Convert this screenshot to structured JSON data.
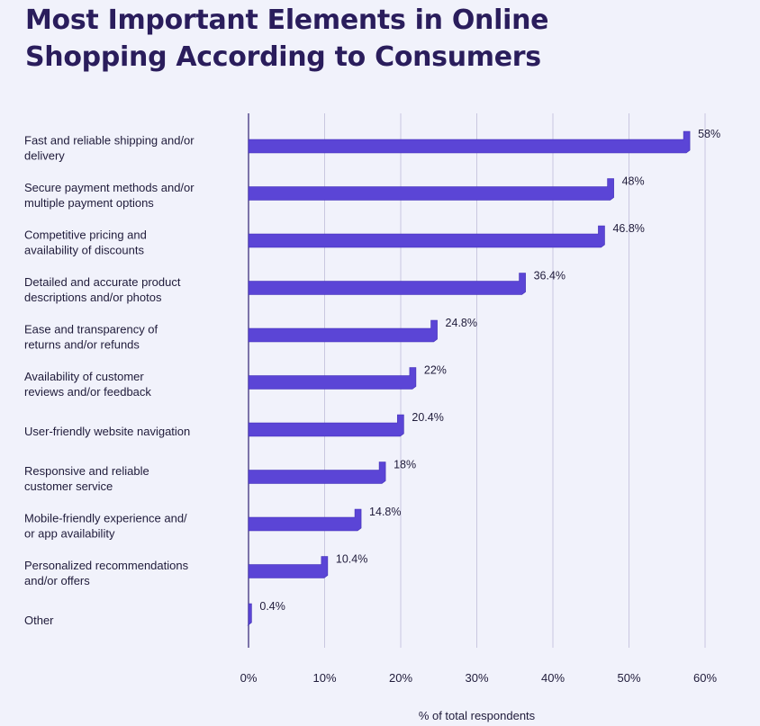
{
  "title": {
    "line1": "Most Important Elements in Online",
    "line2": "Shopping According to Consumers"
  },
  "chart_data": {
    "type": "bar",
    "orientation": "horizontal",
    "title": "Most Important Elements in Online Shopping According to Consumers",
    "categories": [
      [
        "Fast and reliable shipping and/or",
        "delivery"
      ],
      [
        "Secure payment methods and/or",
        "multiple payment options"
      ],
      [
        "Competitive pricing and",
        "availability of discounts"
      ],
      [
        "Detailed and accurate product",
        "descriptions and/or photos"
      ],
      [
        "Ease and transparency of",
        "returns and/or refunds"
      ],
      [
        "Availability of customer",
        "reviews and/or feedback"
      ],
      [
        "User-friendly website navigation"
      ],
      [
        "Responsive and reliable",
        "customer service"
      ],
      [
        "Mobile-friendly experience and/",
        "or app availability"
      ],
      [
        "Personalized recommendations",
        "and/or offers"
      ],
      [
        "Other"
      ]
    ],
    "values": [
      58,
      48,
      46.8,
      36.4,
      24.8,
      22,
      20.4,
      18,
      14.8,
      10.4,
      0.4
    ],
    "value_labels": [
      "58%",
      "48%",
      "46.8%",
      "36.4%",
      "24.8%",
      "22%",
      "20.4%",
      "18%",
      "14.8%",
      "10.4%",
      "0.4%"
    ],
    "xlim": [
      0,
      60
    ],
    "xticks": [
      0,
      10,
      20,
      30,
      40,
      50,
      60
    ],
    "xtick_labels": [
      "0%",
      "10%",
      "20%",
      "30%",
      "40%",
      "50%",
      "60%"
    ],
    "xlabel": "% of total respondents",
    "ylabel": "",
    "grid": true,
    "colors": {
      "bar": "#5b45d6",
      "bar_edge": "#3f2cb3",
      "grid": "#c9c7e0",
      "axis": "#4a3f86",
      "title": "#2a1d5c",
      "background": "#f1f2fb"
    }
  }
}
